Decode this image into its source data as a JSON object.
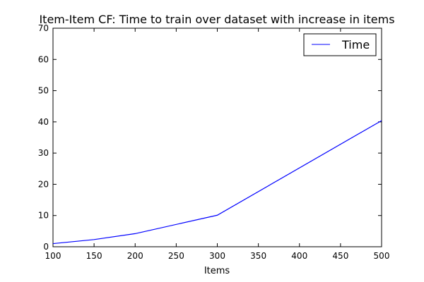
{
  "chart_data": {
    "type": "line",
    "title": "Item-Item CF: Time to train over dataset with increase in items",
    "xlabel": "Items",
    "ylabel": "",
    "xlim": [
      100,
      500
    ],
    "ylim": [
      0,
      70
    ],
    "xticks": [
      100,
      150,
      200,
      250,
      300,
      350,
      400,
      450,
      500
    ],
    "yticks": [
      0,
      10,
      20,
      30,
      40,
      50,
      60,
      70
    ],
    "grid": false,
    "legend_position": "top-right",
    "series": [
      {
        "name": "Time",
        "color": "#0000ff",
        "x": [
          100,
          150,
          200,
          300,
          500
        ],
        "y": [
          1.0,
          2.3,
          4.2,
          10.1,
          40.4
        ]
      }
    ]
  }
}
